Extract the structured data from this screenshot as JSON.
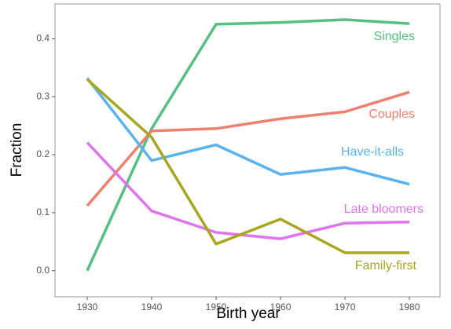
{
  "chart_data": {
    "type": "line",
    "x_label": "Birth year",
    "y_label": "Fraction",
    "x": [
      1930,
      1940,
      1950,
      1960,
      1970,
      1980
    ],
    "xlim": [
      1925,
      1984.75
    ],
    "xticks": [
      1930,
      1940,
      1950,
      1960,
      1970,
      1980
    ],
    "ylim": [
      -0.045,
      0.46
    ],
    "yticks": [
      {
        "value": 0,
        "label": "0.0"
      },
      0.1,
      0.2,
      0.3,
      0.4
    ],
    "series": [
      {
        "name": "Singles",
        "color": "#55c081",
        "values": [
          0.0,
          0.245,
          0.425,
          0.428,
          0.433,
          0.426
        ]
      },
      {
        "name": "Couples",
        "color": "#ef8070",
        "values": [
          0.112,
          0.241,
          0.245,
          0.262,
          0.274,
          0.308
        ]
      },
      {
        "name": "Have-it-alls",
        "color": "#5ab3ee",
        "values": [
          0.332,
          0.19,
          0.217,
          0.166,
          0.178,
          0.149
        ]
      },
      {
        "name": "Late bloomers",
        "color": "#df74ec",
        "values": [
          0.221,
          0.103,
          0.066,
          0.055,
          0.082,
          0.084
        ]
      },
      {
        "name": "Family-first",
        "color": "#a8a61d",
        "values": [
          0.33,
          0.23,
          0.046,
          0.089,
          0.031,
          0.031
        ]
      }
    ]
  }
}
